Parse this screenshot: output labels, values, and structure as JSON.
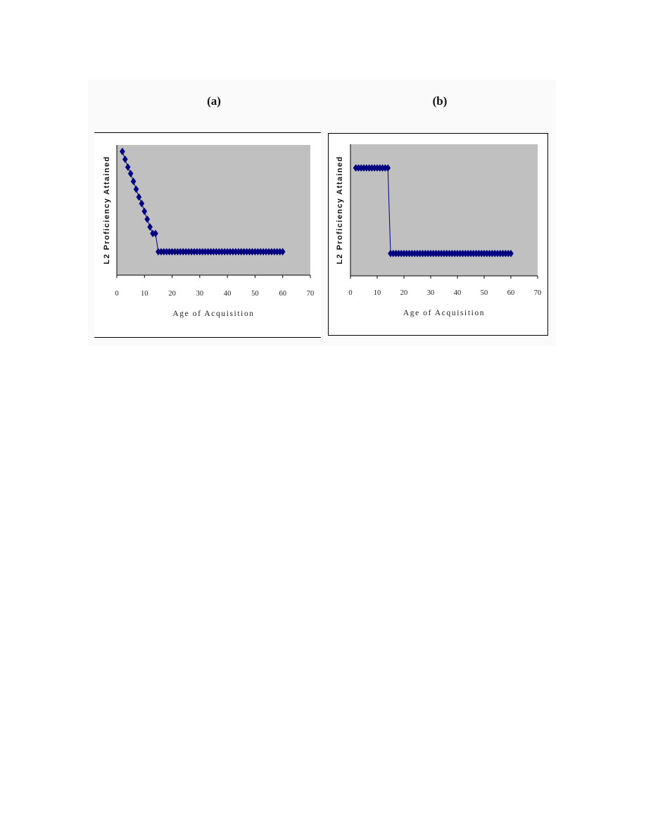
{
  "figure": {
    "panel_a_label": "(a)",
    "panel_b_label": "(b)"
  },
  "colors": {
    "plot_area": "#c0c0c0",
    "series": "#000080"
  },
  "chart_data": [
    {
      "type": "line",
      "panel": "(a)",
      "xlabel": "Age of Acquisition",
      "ylabel": "L2 Proficiency Attained",
      "xlim": [
        0,
        70
      ],
      "xticks": [
        "0",
        "10",
        "20",
        "30",
        "40",
        "50",
        "60",
        "70"
      ],
      "ylim": [
        0,
        1
      ],
      "y_tick_labels": "none",
      "grid": false,
      "legend": "none",
      "marker": "diamond",
      "series": [
        {
          "x": [
            2,
            3,
            4,
            5,
            6,
            7,
            8,
            9,
            10,
            11,
            12,
            13,
            14,
            15,
            16,
            17,
            18,
            19,
            20,
            21,
            22,
            23,
            24,
            25,
            26,
            27,
            28,
            29,
            30,
            31,
            32,
            33,
            34,
            35,
            36,
            37,
            38,
            39,
            40,
            41,
            42,
            43,
            44,
            45,
            46,
            47,
            48,
            49,
            50,
            51,
            52,
            53,
            54,
            55,
            56,
            57,
            58,
            59,
            60
          ],
          "values": [
            0.95,
            0.89,
            0.83,
            0.78,
            0.72,
            0.66,
            0.6,
            0.55,
            0.49,
            0.43,
            0.37,
            0.32,
            0.32,
            0.18,
            0.18,
            0.18,
            0.18,
            0.18,
            0.18,
            0.18,
            0.18,
            0.18,
            0.18,
            0.18,
            0.18,
            0.18,
            0.18,
            0.18,
            0.18,
            0.18,
            0.18,
            0.18,
            0.18,
            0.18,
            0.18,
            0.18,
            0.18,
            0.18,
            0.18,
            0.18,
            0.18,
            0.18,
            0.18,
            0.18,
            0.18,
            0.18,
            0.18,
            0.18,
            0.18,
            0.18,
            0.18,
            0.18,
            0.18,
            0.18,
            0.18,
            0.18,
            0.18,
            0.18,
            0.18
          ]
        }
      ]
    },
    {
      "type": "line",
      "panel": "(b)",
      "xlabel": "Age of Acquisition",
      "ylabel": "L2 Proficiency Attained",
      "xlim": [
        0,
        70
      ],
      "xticks": [
        "0",
        "10",
        "20",
        "30",
        "40",
        "50",
        "60",
        "70"
      ],
      "ylim": [
        0,
        1
      ],
      "y_tick_labels": "none",
      "grid": false,
      "legend": "none",
      "marker": "diamond",
      "series": [
        {
          "x": [
            2,
            3,
            4,
            5,
            6,
            7,
            8,
            9,
            10,
            11,
            12,
            13,
            14,
            15,
            16,
            17,
            18,
            19,
            20,
            21,
            22,
            23,
            24,
            25,
            26,
            27,
            28,
            29,
            30,
            31,
            32,
            33,
            34,
            35,
            36,
            37,
            38,
            39,
            40,
            41,
            42,
            43,
            44,
            45,
            46,
            47,
            48,
            49,
            50,
            51,
            52,
            53,
            54,
            55,
            56,
            57,
            58,
            59,
            60
          ],
          "values": [
            0.82,
            0.82,
            0.82,
            0.82,
            0.82,
            0.82,
            0.82,
            0.82,
            0.82,
            0.82,
            0.82,
            0.82,
            0.82,
            0.17,
            0.17,
            0.17,
            0.17,
            0.17,
            0.17,
            0.17,
            0.17,
            0.17,
            0.17,
            0.17,
            0.17,
            0.17,
            0.17,
            0.17,
            0.17,
            0.17,
            0.17,
            0.17,
            0.17,
            0.17,
            0.17,
            0.17,
            0.17,
            0.17,
            0.17,
            0.17,
            0.17,
            0.17,
            0.17,
            0.17,
            0.17,
            0.17,
            0.17,
            0.17,
            0.17,
            0.17,
            0.17,
            0.17,
            0.17,
            0.17,
            0.17,
            0.17,
            0.17,
            0.17,
            0.17
          ]
        }
      ]
    }
  ]
}
